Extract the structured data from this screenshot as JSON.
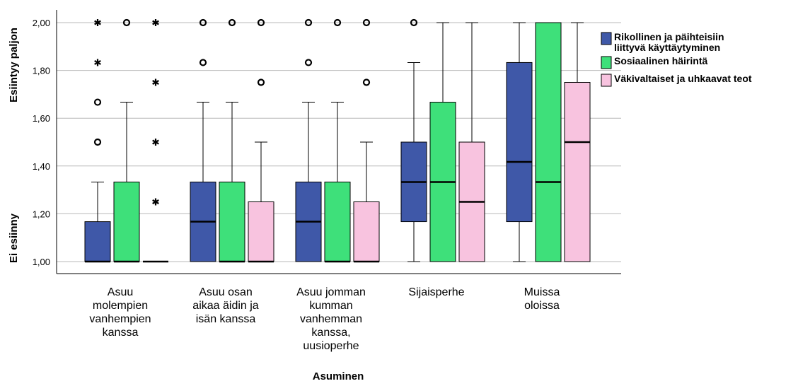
{
  "chart_data": {
    "type": "boxplot",
    "xlabel": "Asuminen",
    "ylabel_top": "Esiintyy paljon",
    "ylabel_bottom": "Ei esiinny",
    "ylim": [
      1.0,
      2.0
    ],
    "yticks": [
      "1,00",
      "1,20",
      "1,40",
      "1,60",
      "1,80",
      "2,00"
    ],
    "ytick_values": [
      1.0,
      1.2,
      1.4,
      1.6,
      1.8,
      2.0
    ],
    "grid": "horizontal",
    "legend_position": "right",
    "categories": [
      [
        "Asuu",
        "molempien",
        "vanhempien",
        "kanssa"
      ],
      [
        "Asuu osan",
        "aikaa äidin ja",
        "isän kanssa"
      ],
      [
        "Asuu jomman",
        "kumman",
        "vanhemman",
        "kanssa,",
        "uusioperhe"
      ],
      [
        "Sijaisperhe"
      ],
      [
        "Muissa",
        "oloissa"
      ]
    ],
    "series": [
      {
        "name_lines": [
          "Rikollinen ja päihteisiin",
          "liittyvä käyttäytyminen"
        ],
        "color": "#3f58a8",
        "boxes": [
          {
            "whisker_low": 1.0,
            "q1": 1.0,
            "median": 1.0,
            "q3": 1.167,
            "whisker_high": 1.333,
            "outliers": [
              {
                "v": 1.5,
                "m": "circle"
              },
              {
                "v": 1.667,
                "m": "circle"
              },
              {
                "v": 1.833,
                "m": "star"
              },
              {
                "v": 2.0,
                "m": "star"
              }
            ]
          },
          {
            "whisker_low": 1.0,
            "q1": 1.0,
            "median": 1.167,
            "q3": 1.333,
            "whisker_high": 1.667,
            "outliers": [
              {
                "v": 1.833,
                "m": "circle"
              },
              {
                "v": 2.0,
                "m": "circle"
              }
            ]
          },
          {
            "whisker_low": 1.0,
            "q1": 1.0,
            "median": 1.167,
            "q3": 1.333,
            "whisker_high": 1.667,
            "outliers": [
              {
                "v": 1.833,
                "m": "circle"
              },
              {
                "v": 2.0,
                "m": "circle"
              }
            ]
          },
          {
            "whisker_low": 1.0,
            "q1": 1.167,
            "median": 1.333,
            "q3": 1.5,
            "whisker_high": 1.833,
            "outliers": [
              {
                "v": 2.0,
                "m": "circle"
              }
            ]
          },
          {
            "whisker_low": 1.0,
            "q1": 1.167,
            "median": 1.417,
            "q3": 1.833,
            "whisker_high": 2.0,
            "outliers": []
          }
        ]
      },
      {
        "name_lines": [
          "Sosiaalinen häirintä"
        ],
        "color": "#3ee07a",
        "boxes": [
          {
            "whisker_low": 1.0,
            "q1": 1.0,
            "median": 1.0,
            "q3": 1.333,
            "whisker_high": 1.667,
            "outliers": [
              {
                "v": 2.0,
                "m": "circle"
              }
            ]
          },
          {
            "whisker_low": 1.0,
            "q1": 1.0,
            "median": 1.0,
            "q3": 1.333,
            "whisker_high": 1.667,
            "outliers": [
              {
                "v": 2.0,
                "m": "circle"
              }
            ]
          },
          {
            "whisker_low": 1.0,
            "q1": 1.0,
            "median": 1.0,
            "q3": 1.333,
            "whisker_high": 1.667,
            "outliers": [
              {
                "v": 2.0,
                "m": "circle"
              }
            ]
          },
          {
            "whisker_low": 1.0,
            "q1": 1.0,
            "median": 1.333,
            "q3": 1.667,
            "whisker_high": 2.0,
            "outliers": []
          },
          {
            "whisker_low": 1.0,
            "q1": 1.0,
            "median": 1.333,
            "q3": 2.0,
            "whisker_high": 2.0,
            "outliers": []
          }
        ]
      },
      {
        "name_lines": [
          "Väkivaltaiset ja uhkaavat teot"
        ],
        "color": "#f8c3df",
        "boxes": [
          {
            "whisker_low": 1.0,
            "q1": 1.0,
            "median": 1.0,
            "q3": 1.0,
            "whisker_high": 1.0,
            "outliers": [
              {
                "v": 1.25,
                "m": "star"
              },
              {
                "v": 1.5,
                "m": "star"
              },
              {
                "v": 1.75,
                "m": "star"
              },
              {
                "v": 2.0,
                "m": "star"
              }
            ]
          },
          {
            "whisker_low": 1.0,
            "q1": 1.0,
            "median": 1.0,
            "q3": 1.25,
            "whisker_high": 1.5,
            "outliers": [
              {
                "v": 1.75,
                "m": "circle"
              },
              {
                "v": 2.0,
                "m": "circle"
              }
            ]
          },
          {
            "whisker_low": 1.0,
            "q1": 1.0,
            "median": 1.0,
            "q3": 1.25,
            "whisker_high": 1.5,
            "outliers": [
              {
                "v": 1.75,
                "m": "circle"
              },
              {
                "v": 2.0,
                "m": "circle"
              }
            ]
          },
          {
            "whisker_low": 1.0,
            "q1": 1.0,
            "median": 1.25,
            "q3": 1.5,
            "whisker_high": 2.0,
            "outliers": []
          },
          {
            "whisker_low": 1.0,
            "q1": 1.0,
            "median": 1.5,
            "q3": 1.75,
            "whisker_high": 2.0,
            "outliers": []
          }
        ]
      }
    ]
  }
}
